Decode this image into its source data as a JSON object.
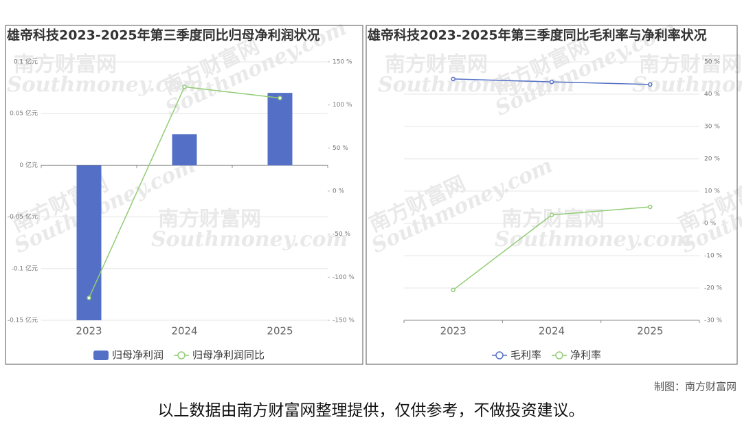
{
  "chart_data": [
    {
      "type": "bar",
      "title": "雄帝科技2023-2025年第三季度同比归母净利润状况",
      "categories": [
        "2023",
        "2024",
        "2025"
      ],
      "series": [
        {
          "name": "归母净利润",
          "type": "bar",
          "color": "#5470c6",
          "values": [
            -0.15,
            0.03,
            0.07
          ]
        },
        {
          "name": "归母净利润同比",
          "type": "line",
          "axis": "y2",
          "color": "#91cc75",
          "values": [
            -124,
            121,
            108
          ]
        }
      ],
      "ylim": [
        -0.15,
        0.1
      ],
      "yticks": [
        {
          "value": 0.1,
          "label": "0.1 亿元"
        },
        {
          "value": 0.05,
          "label": "0.05 亿元"
        },
        {
          "value": 0,
          "label": "0 亿元"
        },
        {
          "value": -0.05,
          "label": "-0.05 亿元"
        },
        {
          "value": -0.1,
          "label": "-0.1 亿元"
        },
        {
          "value": -0.15,
          "label": "-0.15 亿元"
        }
      ],
      "y2lim": [
        -150,
        150
      ],
      "y2ticks": [
        {
          "value": 150,
          "label": "150 %"
        },
        {
          "value": 100,
          "label": "100 %"
        },
        {
          "value": 50,
          "label": "50 %"
        },
        {
          "value": 0,
          "label": "0 %"
        },
        {
          "value": -50,
          "label": "-50 %"
        },
        {
          "value": -100,
          "label": "-100 %"
        },
        {
          "value": -150,
          "label": "-150 %"
        }
      ],
      "grid": true,
      "legend": "bottom"
    },
    {
      "type": "line",
      "title": "雄帝科技2023-2025年第三季度同比毛利率与净利率状况",
      "categories": [
        "2023",
        "2024",
        "2025"
      ],
      "series": [
        {
          "name": "毛利率",
          "color": "#5470c6",
          "values": [
            44.7,
            43.8,
            43.0
          ]
        },
        {
          "name": "净利率",
          "color": "#91cc75",
          "values": [
            -20.6,
            2.6,
            5.1
          ]
        }
      ],
      "ylim": [
        -30,
        50
      ],
      "yticks": [
        {
          "value": 50,
          "label": "50 %"
        },
        {
          "value": 40,
          "label": "40 %"
        },
        {
          "value": 30,
          "label": "30 %"
        },
        {
          "value": 20,
          "label": "20 %"
        },
        {
          "value": 10,
          "label": "10 %"
        },
        {
          "value": 0,
          "label": "0 %"
        },
        {
          "value": -10,
          "label": "-10 %"
        },
        {
          "value": -20,
          "label": "-20 %"
        },
        {
          "value": -30,
          "label": "-30 %"
        }
      ],
      "y_axis_side": "right",
      "grid": true,
      "legend": "bottom"
    }
  ],
  "watermark": {
    "cn": "南方财富网",
    "en": "Southmoney.com"
  },
  "credit": "制图：南方财富网",
  "disclaimer": "以上数据由南方财富网整理提供，仅供参考，不做投资建议。"
}
